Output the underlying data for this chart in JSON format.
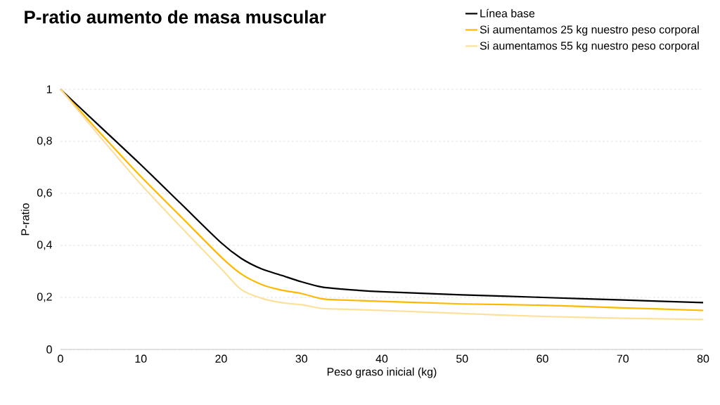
{
  "chart_data": {
    "type": "line",
    "title": "P-ratio aumento de masa muscular",
    "xlabel": "Peso graso inicial (kg)",
    "ylabel": "P-ratio",
    "x": [
      0,
      5,
      10,
      15,
      20,
      22.5,
      25,
      27.5,
      30,
      32.5,
      35,
      40,
      50,
      60,
      70,
      80
    ],
    "series": [
      {
        "name": "Línea base",
        "color": "#000000",
        "values": [
          1,
          0.855,
          0.71,
          0.56,
          0.41,
          0.35,
          0.31,
          0.285,
          0.26,
          0.24,
          0.232,
          0.222,
          0.21,
          0.2,
          0.19,
          0.18
        ]
      },
      {
        "name": "Si aumentamos 25 kg nuestro peso corporal",
        "color": "#ffb800",
        "values": [
          1,
          0.83,
          0.665,
          0.51,
          0.355,
          0.29,
          0.25,
          0.228,
          0.215,
          0.195,
          0.19,
          0.185,
          0.175,
          0.17,
          0.16,
          0.15
        ]
      },
      {
        "name": "Si aumentamos 55 kg nuestro peso corporal",
        "color": "#fde19a",
        "values": [
          1,
          0.815,
          0.635,
          0.47,
          0.31,
          0.23,
          0.197,
          0.18,
          0.172,
          0.158,
          0.155,
          0.15,
          0.138,
          0.127,
          0.12,
          0.115
        ]
      }
    ],
    "xlim": [
      0,
      80
    ],
    "xticks": [
      0,
      10,
      20,
      30,
      40,
      50,
      60,
      70,
      80
    ],
    "ylim": [
      0,
      1
    ],
    "yticks": [
      0,
      {
        "value": 0.2,
        "label": "0,2"
      },
      {
        "value": 0.4,
        "label": "0,4"
      },
      {
        "value": 0.6,
        "label": "0,6"
      },
      {
        "value": 0.8,
        "label": "0,8"
      },
      1
    ],
    "grid": "y",
    "legend": "top right",
    "marker": "none",
    "line_style": "solid"
  }
}
